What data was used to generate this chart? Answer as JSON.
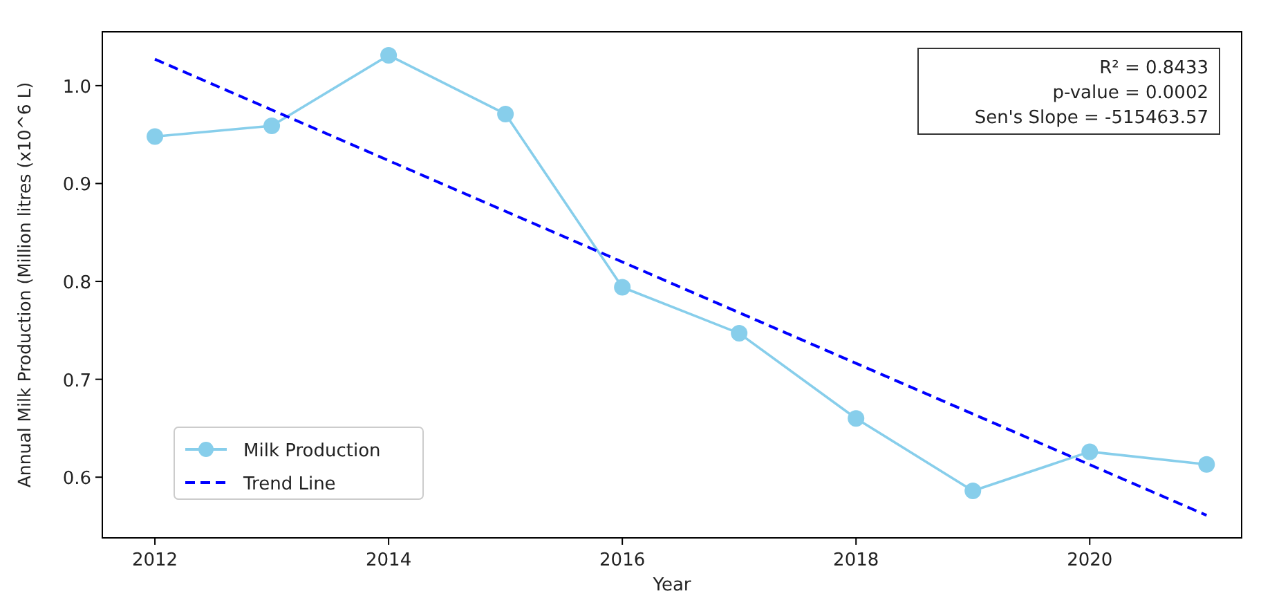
{
  "chart_data": {
    "type": "line",
    "xlabel": "Year",
    "ylabel": "Annual Milk Production (Million litres (x10^6 L)",
    "x": [
      2012,
      2013,
      2014,
      2015,
      2016,
      2017,
      2018,
      2019,
      2020,
      2021
    ],
    "series": [
      {
        "name": "Milk Production",
        "color": "#87ceeb",
        "marker": "circle",
        "line_style": "solid",
        "values": [
          0.948,
          0.959,
          1.031,
          0.971,
          0.794,
          0.747,
          0.66,
          0.586,
          0.626,
          0.613
        ]
      },
      {
        "name": "Trend Line",
        "color": "#0000ff",
        "marker": "none",
        "line_style": "dashed",
        "x": [
          2012,
          2021
        ],
        "values": [
          1.027,
          0.561
        ]
      }
    ],
    "xlim": [
      2011.55,
      2021.3
    ],
    "xticks": [
      2012,
      2014,
      2016,
      2018,
      2020
    ],
    "ylim": [
      0.538,
      1.055
    ],
    "yticks": [
      {
        "value": 0.6,
        "label": "0.6"
      },
      {
        "value": 0.7,
        "label": "0.7"
      },
      {
        "value": 0.8,
        "label": "0.8"
      },
      {
        "value": 0.9,
        "label": "0.9"
      },
      {
        "value": 1.0,
        "label": "1.0"
      }
    ],
    "annotations": [
      "R² = 0.8433",
      "p-value = 0.0002",
      "Sen's Slope = -515463.57"
    ],
    "legend": "bottom left",
    "grid": false
  }
}
